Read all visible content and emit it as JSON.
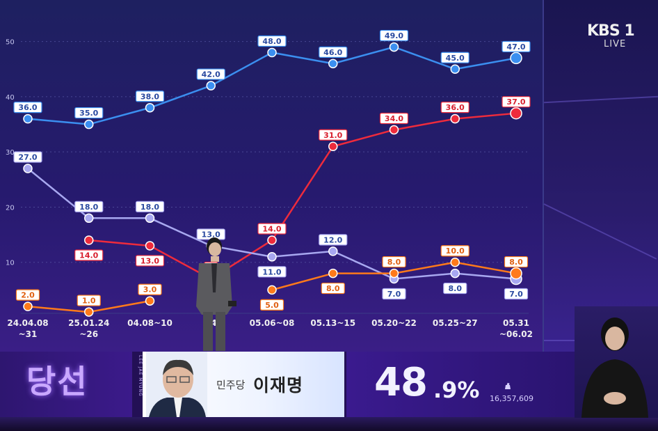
{
  "broadcaster": {
    "logo": "KBS 1",
    "live": "LIVE"
  },
  "chart_data": {
    "type": "line",
    "categories": [
      "24.04.08 ~31",
      "25.01.24 ~26",
      "04.08~10",
      "04",
      "05.06~08",
      "05.13~15",
      "05.20~22",
      "05.25~27",
      "05.31 ~06.02"
    ],
    "category_lines": [
      [
        "24.04.08",
        "~31"
      ],
      [
        "25.01.24",
        "~26"
      ],
      [
        "04.08~10"
      ],
      [
        "04"
      ],
      [
        "05.06~08"
      ],
      [
        "05.13~15"
      ],
      [
        "05.20~22"
      ],
      [
        "05.25~27"
      ],
      [
        "05.31",
        "~06.02"
      ]
    ],
    "ylim": [
      0,
      55
    ],
    "yticks": [
      10,
      20,
      30,
      40,
      50
    ],
    "grid": true,
    "series": [
      {
        "color": "#3b8ff0",
        "values": [
          36.0,
          35.0,
          38.0,
          42.0,
          48.0,
          46.0,
          49.0,
          45.0,
          47.0
        ]
      },
      {
        "color": "#ee2b3c",
        "values": [
          null,
          14.0,
          13.0,
          7.0,
          14.0,
          31.0,
          34.0,
          36.0,
          37.0
        ]
      },
      {
        "color": "#a8a8f0",
        "values": [
          27.0,
          18.0,
          18.0,
          13.0,
          11.0,
          12.0,
          7.0,
          8.0,
          7.0
        ]
      },
      {
        "color": "#ff7a1a",
        "values": [
          2.0,
          1.0,
          3.0,
          null,
          5.0,
          8.0,
          8.0,
          10.0,
          8.0
        ]
      }
    ],
    "data_labels": [
      [
        "36.0",
        "35.0",
        "38.0",
        "42.0",
        "48.0",
        "46.0",
        "49.0",
        "45.0",
        "47.0"
      ],
      [
        "",
        "14.0",
        "13.0",
        "7",
        "14.0",
        "31.0",
        "34.0",
        "36.0",
        "37.0"
      ],
      [
        "27.0",
        "18.0",
        "18.0",
        "13.0",
        "11.0",
        "12.0",
        "7.0",
        "8.0",
        "7.0"
      ],
      [
        "2.0",
        "1.0",
        "3.0",
        "",
        "5.0",
        "8.0",
        "8.0",
        "10.0",
        "8.0"
      ]
    ]
  },
  "banner": {
    "status": "당선",
    "vertical_name": "LEE JAE MYUNG",
    "party": "민주당",
    "candidate": "이재명",
    "percent_int": "48",
    "percent_dec": ".9%",
    "votes": "16,357,609"
  }
}
